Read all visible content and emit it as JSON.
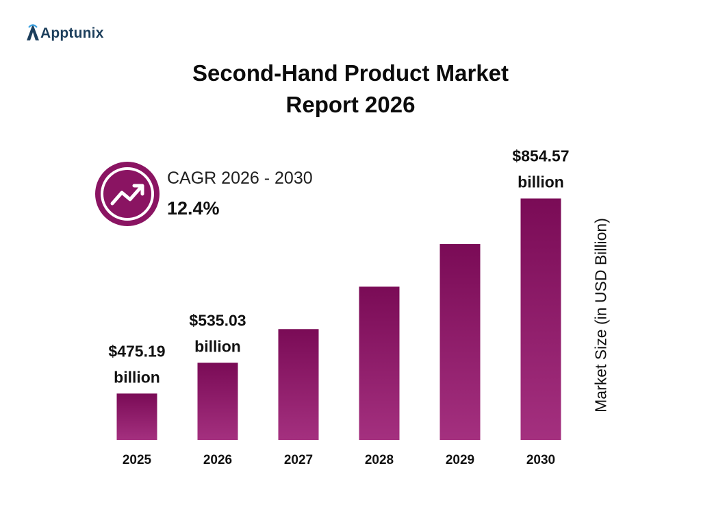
{
  "brand": {
    "name": "Apptunix",
    "color": "#1d3f5c",
    "icon": "apptunix-logo-icon"
  },
  "title_lines": [
    "Second-Hand Product Market",
    "Report 2026"
  ],
  "cagr": {
    "label": "CAGR 2026 - 2030",
    "value": "12.4%",
    "icon": "trend-up-icon",
    "color": "#8a1462"
  },
  "chart_data": {
    "type": "bar",
    "title": "Second-Hand Product Market Report 2026",
    "categories": [
      "2025",
      "2026",
      "2027",
      "2028",
      "2029",
      "2030"
    ],
    "values": [
      475.19,
      535.03,
      600.5,
      683.0,
      766.0,
      854.57
    ],
    "data_labels": [
      [
        "$475.19",
        "billion"
      ],
      [
        "$535.03",
        "billion"
      ],
      null,
      null,
      null,
      [
        "$854.57",
        "billion"
      ]
    ],
    "xlabel": "",
    "ylabel": "Market Size (in USD Billion)",
    "ylim": [
      385,
      870
    ],
    "grid": false,
    "legend": "none",
    "bar_gradient": [
      "#7a0b56",
      "#a4307f"
    ]
  }
}
